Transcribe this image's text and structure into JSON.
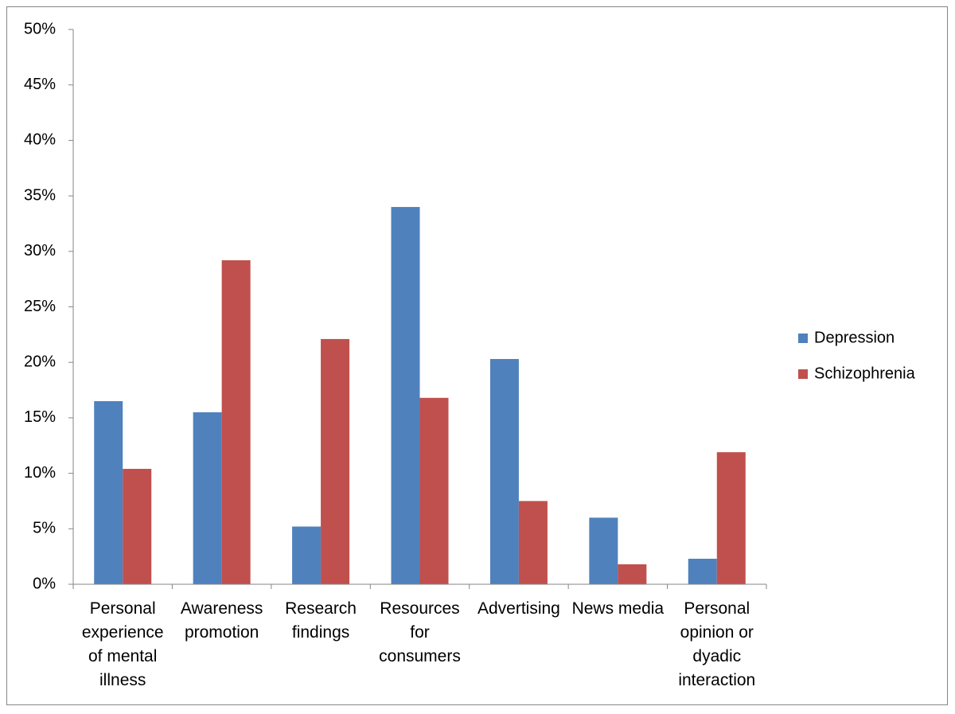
{
  "chart_data": {
    "type": "bar",
    "categories": [
      "Personal experience of mental illness",
      "Awareness promotion",
      "Research findings",
      "Resources for consumers",
      "Advertising",
      "News media",
      "Personal opinion or dyadic interaction"
    ],
    "series": [
      {
        "name": "Depression",
        "color": "#4f81bd",
        "values": [
          16.5,
          15.5,
          5.2,
          34,
          20.3,
          6,
          2.3
        ]
      },
      {
        "name": "Schizophrenia",
        "color": "#c0504d",
        "values": [
          10.4,
          29.2,
          22.1,
          16.8,
          7.5,
          1.8,
          11.9
        ]
      }
    ],
    "ylim": [
      0,
      50
    ],
    "yticks": [
      {
        "value": 0,
        "label": "0%"
      },
      {
        "value": 5,
        "label": "5%"
      },
      {
        "value": 10,
        "label": "10%"
      },
      {
        "value": 15,
        "label": "15%"
      },
      {
        "value": 20,
        "label": "20%"
      },
      {
        "value": 25,
        "label": "25%"
      },
      {
        "value": 30,
        "label": "30%"
      },
      {
        "value": 35,
        "label": "35%"
      },
      {
        "value": 40,
        "label": "40%"
      },
      {
        "value": 45,
        "label": "45%"
      },
      {
        "value": 50,
        "label": "50%"
      }
    ],
    "legend": "right"
  }
}
